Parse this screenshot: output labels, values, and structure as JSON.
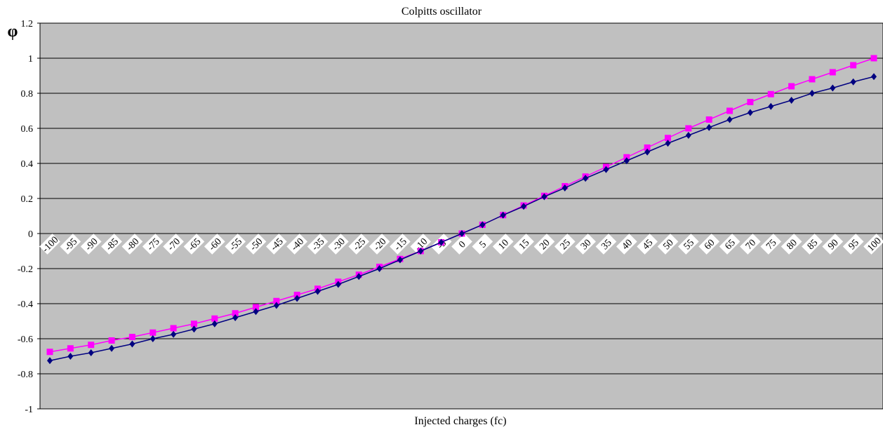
{
  "chart_data": {
    "type": "line",
    "title": "Colpitts oscillator",
    "xlabel": "Injected charges (fc)",
    "ylabel": "φ",
    "ylim": [
      -1,
      1.2
    ],
    "yticks": [
      -1,
      -0.8,
      -0.6,
      -0.4,
      -0.2,
      0,
      0.2,
      0.4,
      0.6,
      0.8,
      1,
      1.2
    ],
    "ytick_labels": [
      "-1",
      "-0.8",
      "-0.6",
      "-0.4",
      "-0.2",
      "0",
      "0.2",
      "0.4",
      "0.6",
      "0.8",
      "1",
      "1.2"
    ],
    "grid": true,
    "legend": "none",
    "colors": {
      "plot_background": "#c0c0c0",
      "gridline": "#000000",
      "series_magenta": "#ff00ff",
      "series_navy": "#000080"
    },
    "categories": [
      "-100",
      "-95",
      "-90",
      "-85",
      "-80",
      "-75",
      "-70",
      "-65",
      "-60",
      "-55",
      "-50",
      "-45",
      "-40",
      "-35",
      "-30",
      "-25",
      "-20",
      "-15",
      "-10",
      "-5",
      "0",
      "5",
      "10",
      "15",
      "20",
      "25",
      "30",
      "35",
      "40",
      "45",
      "50",
      "55",
      "60",
      "65",
      "70",
      "75",
      "80",
      "85",
      "90",
      "95",
      "100"
    ],
    "series": [
      {
        "marker": "square",
        "color": "#ff00ff",
        "values": [
          -0.675,
          -0.655,
          -0.635,
          -0.61,
          -0.59,
          -0.565,
          -0.54,
          -0.515,
          -0.485,
          -0.455,
          -0.42,
          -0.385,
          -0.35,
          -0.315,
          -0.275,
          -0.235,
          -0.19,
          -0.145,
          -0.1,
          -0.05,
          0,
          0.05,
          0.105,
          0.16,
          0.215,
          0.27,
          0.325,
          0.38,
          0.435,
          0.49,
          0.545,
          0.6,
          0.65,
          0.7,
          0.75,
          0.795,
          0.84,
          0.88,
          0.92,
          0.96,
          1.0
        ]
      },
      {
        "marker": "diamond",
        "color": "#000080",
        "values": [
          -0.725,
          -0.7,
          -0.68,
          -0.655,
          -0.63,
          -0.6,
          -0.575,
          -0.545,
          -0.515,
          -0.48,
          -0.445,
          -0.41,
          -0.37,
          -0.33,
          -0.29,
          -0.245,
          -0.2,
          -0.15,
          -0.1,
          -0.05,
          0,
          0.05,
          0.105,
          0.155,
          0.21,
          0.26,
          0.315,
          0.365,
          0.415,
          0.465,
          0.515,
          0.56,
          0.605,
          0.65,
          0.69,
          0.725,
          0.76,
          0.8,
          0.83,
          0.865,
          0.895
        ]
      }
    ]
  }
}
